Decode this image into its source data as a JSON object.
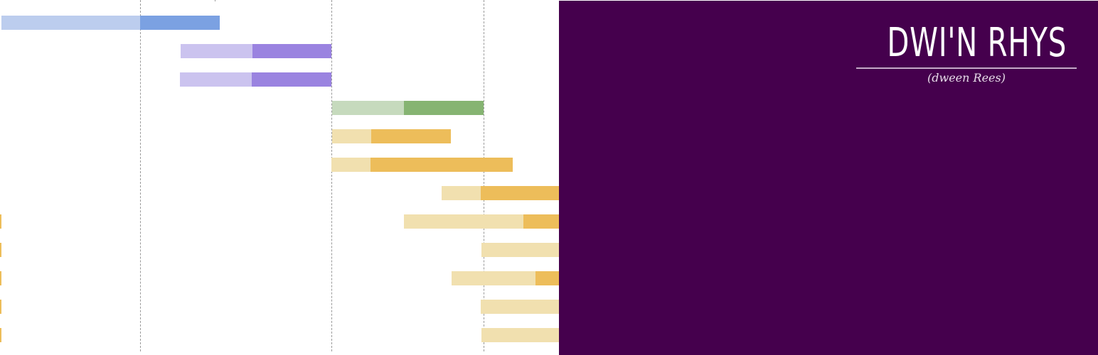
{
  "logo": {
    "title": "DWI'N RHYS",
    "subtitle": "(dween Rees)"
  },
  "colors": {
    "panel_background": "#45004D",
    "blue_light": "#BCCDEE",
    "blue_dark": "#7BA1E2",
    "purple_light": "#CBC3EF",
    "purple_dark": "#9A83E0",
    "green_light": "#C6DABD",
    "green_dark": "#86B472",
    "yellow_light": "#F1E0AF",
    "yellow_dark": "#EDBD5A"
  }
}
